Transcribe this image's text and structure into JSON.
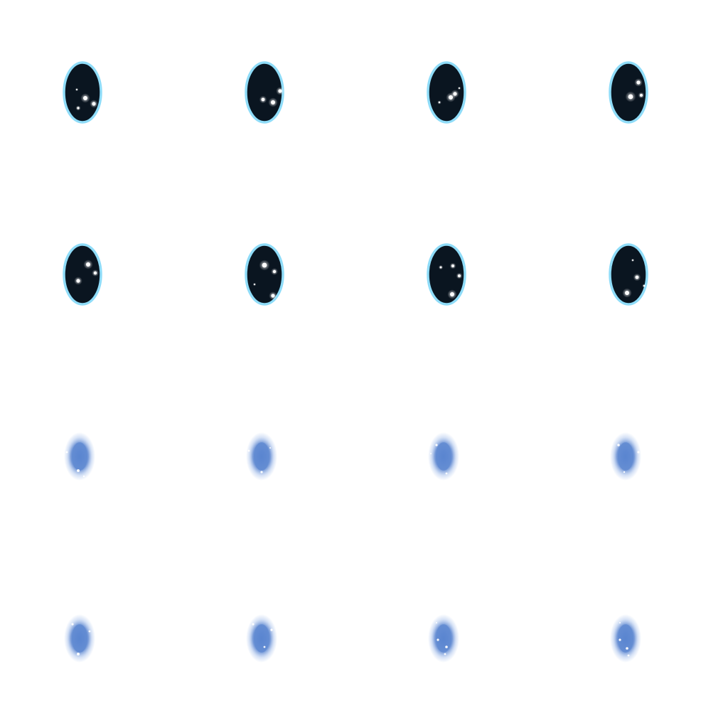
{
  "sheet": {
    "grid": {
      "rows": 4,
      "cols": 4
    },
    "colors": {
      "background": "#ffffff",
      "portal_fill": "#0a1520",
      "portal_rim": "#8fdcf8",
      "star": "#ffffff",
      "nebula_core": "#5a85d0",
      "nebula_edge": "#a9c2ec"
    },
    "rows": [
      {
        "name": "portal-frames-row-1",
        "kind": "portal",
        "frames": [
          {
            "frame": 1,
            "icon": "starry-portal-icon"
          },
          {
            "frame": 2,
            "icon": "starry-portal-icon"
          },
          {
            "frame": 3,
            "icon": "starry-portal-icon"
          },
          {
            "frame": 4,
            "icon": "starry-portal-icon"
          }
        ]
      },
      {
        "name": "portal-frames-row-2",
        "kind": "portal",
        "frames": [
          {
            "frame": 5,
            "icon": "starry-portal-icon"
          },
          {
            "frame": 6,
            "icon": "starry-portal-icon"
          },
          {
            "frame": 7,
            "icon": "starry-portal-icon"
          },
          {
            "frame": 8,
            "icon": "starry-portal-icon"
          }
        ]
      },
      {
        "name": "nebula-frames-row-1",
        "kind": "nebula",
        "frames": [
          {
            "frame": 9,
            "icon": "blue-nebula-icon"
          },
          {
            "frame": 10,
            "icon": "blue-nebula-icon"
          },
          {
            "frame": 11,
            "icon": "blue-nebula-icon"
          },
          {
            "frame": 12,
            "icon": "blue-nebula-icon"
          }
        ]
      },
      {
        "name": "nebula-frames-row-2",
        "kind": "nebula",
        "frames": [
          {
            "frame": 13,
            "icon": "blue-nebula-icon"
          },
          {
            "frame": 14,
            "icon": "blue-nebula-icon"
          },
          {
            "frame": 15,
            "icon": "blue-nebula-icon"
          },
          {
            "frame": 16,
            "icon": "blue-nebula-icon"
          }
        ]
      }
    ]
  }
}
